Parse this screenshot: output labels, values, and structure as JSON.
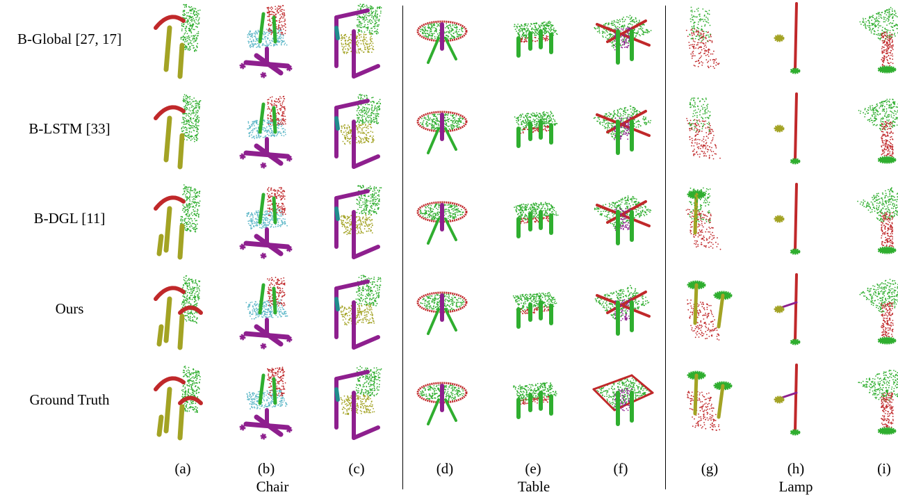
{
  "rows": [
    {
      "label": "B-Global [27, 17]"
    },
    {
      "label": "B-LSTM [33]"
    },
    {
      "label": "B-DGL [11]"
    },
    {
      "label": "Ours"
    },
    {
      "label": "Ground Truth"
    }
  ],
  "columns": [
    {
      "label": "(a)",
      "category": "chair"
    },
    {
      "label": "(b)",
      "category": "chair"
    },
    {
      "label": "(c)",
      "category": "chair"
    },
    {
      "label": "(d)",
      "category": "table"
    },
    {
      "label": "(e)",
      "category": "table"
    },
    {
      "label": "(f)",
      "category": "table"
    },
    {
      "label": "(g)",
      "category": "lamp"
    },
    {
      "label": "(h)",
      "category": "lamp"
    },
    {
      "label": "(i)",
      "category": "lamp"
    }
  ],
  "groups": [
    {
      "label": "Chair"
    },
    {
      "label": "Table"
    },
    {
      "label": "Lamp"
    }
  ],
  "colors": {
    "green": "#2fae2f",
    "red": "#c0282a",
    "olive": "#a3a324",
    "purple": "#8e1f8e",
    "cyan": "#5fb8c8",
    "teal": "#1f8d8d"
  }
}
